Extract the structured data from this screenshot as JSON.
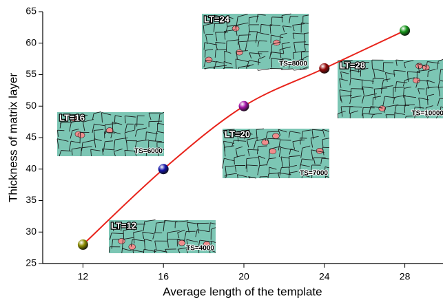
{
  "chart_data": {
    "type": "scatter",
    "x_label": "Average length of the template",
    "y_label": "Thickness of matrix layer",
    "x": [
      12,
      16,
      20,
      24,
      28
    ],
    "y": [
      28,
      40,
      50,
      56,
      62
    ],
    "colors": [
      "#8c8c00",
      "#1414a8",
      "#a414a8",
      "#960808",
      "#16961a"
    ],
    "line_color": "#e8241c",
    "xlim": [
      10,
      30
    ],
    "xticks": [
      12,
      16,
      20,
      24,
      28
    ],
    "ylim": [
      25,
      65
    ],
    "yticks": [
      25,
      30,
      35,
      40,
      45,
      50,
      55,
      60,
      65
    ],
    "annotations": [
      {
        "text": "LT=24",
        "subtext": "TS=8000"
      },
      {
        "text": "LT=28",
        "subtext": "TS=10000"
      },
      {
        "text": "LT=16",
        "subtext": "TS=6000"
      },
      {
        "text": "LT=20",
        "subtext": "TS=7000"
      },
      {
        "text": "LT=12",
        "subtext": "TS=4000"
      }
    ]
  }
}
